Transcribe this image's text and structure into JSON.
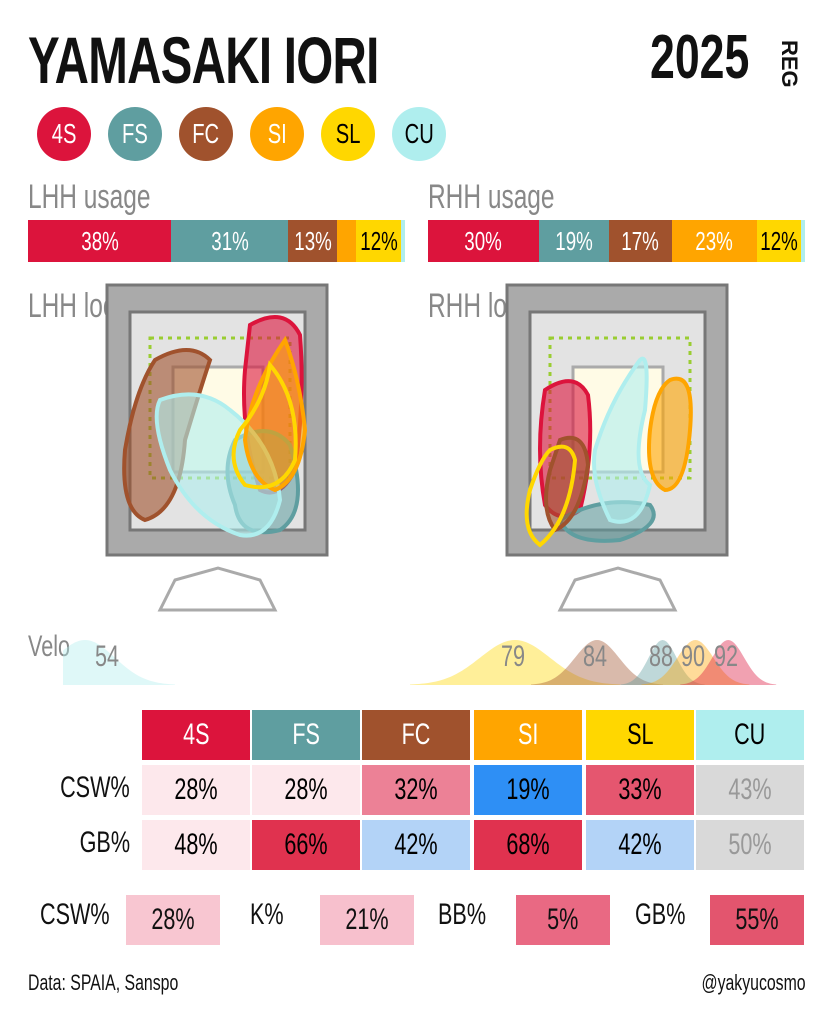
{
  "header": {
    "title": "YAMASAKI IORI",
    "year": "2025",
    "season": "REG"
  },
  "pitches": [
    {
      "code": "4S",
      "color": "#dc143c",
      "text": "#ffffff"
    },
    {
      "code": "FS",
      "color": "#5f9ea0",
      "text": "#ffffff"
    },
    {
      "code": "FC",
      "color": "#a0522d",
      "text": "#ffffff"
    },
    {
      "code": "SI",
      "color": "#ffa500",
      "text": "#ffffff"
    },
    {
      "code": "SL",
      "color": "#ffd700",
      "text": "#000000"
    },
    {
      "code": "CU",
      "color": "#afeeee",
      "text": "#000000"
    }
  ],
  "chart_data": [
    {
      "type": "bar",
      "title": "LHH usage",
      "orientation": "stacked-horizontal",
      "categories": [
        "4S",
        "FS",
        "FC",
        "SI",
        "SL",
        "CU"
      ],
      "values": [
        38,
        31,
        13,
        5,
        12,
        1
      ],
      "labels": [
        "38%",
        "31%",
        "13%",
        "",
        "12%",
        ""
      ]
    },
    {
      "type": "bar",
      "title": "RHH usage",
      "orientation": "stacked-horizontal",
      "categories": [
        "4S",
        "FS",
        "FC",
        "SI",
        "SL",
        "CU"
      ],
      "values": [
        30,
        19,
        17,
        23,
        12,
        1
      ],
      "labels": [
        "30%",
        "19%",
        "17%",
        "23%",
        "12%",
        ""
      ]
    },
    {
      "type": "area",
      "title": "Velo",
      "series": [
        {
          "name": "CU",
          "peak": 54,
          "side": "LHH"
        },
        {
          "name": "SL",
          "peak": 79
        },
        {
          "name": "FC",
          "peak": 84
        },
        {
          "name": "FS",
          "peak": 88
        },
        {
          "name": "SI",
          "peak": 90
        },
        {
          "name": "4S",
          "peak": 92
        }
      ]
    }
  ],
  "loc": {
    "lhh": "LHH\nloc",
    "rhh": "RHH\nloc"
  },
  "velo_label": "Velo",
  "velo_lhh": [
    {
      "code": "CU",
      "value": "54"
    }
  ],
  "velo_rhh": [
    {
      "code": "SL",
      "value": "79"
    },
    {
      "code": "FC",
      "value": "84"
    },
    {
      "code": "FS",
      "value": "88"
    },
    {
      "code": "SI",
      "value": "90"
    },
    {
      "code": "4S",
      "value": "92"
    }
  ],
  "table": {
    "rows": [
      {
        "label": "CSW%",
        "cells": [
          {
            "v": "28%",
            "bg": "#fde8ec",
            "fg": "#000"
          },
          {
            "v": "28%",
            "bg": "#fde8ec",
            "fg": "#000"
          },
          {
            "v": "32%",
            "bg": "#ec8196",
            "fg": "#000"
          },
          {
            "v": "19%",
            "bg": "#2e8ff5",
            "fg": "#000"
          },
          {
            "v": "33%",
            "bg": "#e5566f",
            "fg": "#000"
          },
          {
            "v": "43%",
            "bg": "#d9d9d9",
            "fg": "#999"
          }
        ]
      },
      {
        "label": "GB%",
        "cells": [
          {
            "v": "48%",
            "bg": "#fde8ec",
            "fg": "#000"
          },
          {
            "v": "66%",
            "bg": "#e0324f",
            "fg": "#000"
          },
          {
            "v": "42%",
            "bg": "#b3d3f7",
            "fg": "#000"
          },
          {
            "v": "68%",
            "bg": "#e0324f",
            "fg": "#000"
          },
          {
            "v": "42%",
            "bg": "#b3d3f7",
            "fg": "#000"
          },
          {
            "v": "50%",
            "bg": "#d9d9d9",
            "fg": "#999"
          }
        ]
      }
    ]
  },
  "summary": [
    {
      "label": "CSW%",
      "value": "28%",
      "bg": "#f8c6d1"
    },
    {
      "label": "K%",
      "value": "21%",
      "bg": "#f7c0cd"
    },
    {
      "label": "BB%",
      "value": "5%",
      "bg": "#e96983"
    },
    {
      "label": "GB%",
      "value": "55%",
      "bg": "#e3556e"
    }
  ],
  "footer": {
    "source": "Data: SPAIA, Sanspo",
    "handle": "@yakyucosmo"
  }
}
